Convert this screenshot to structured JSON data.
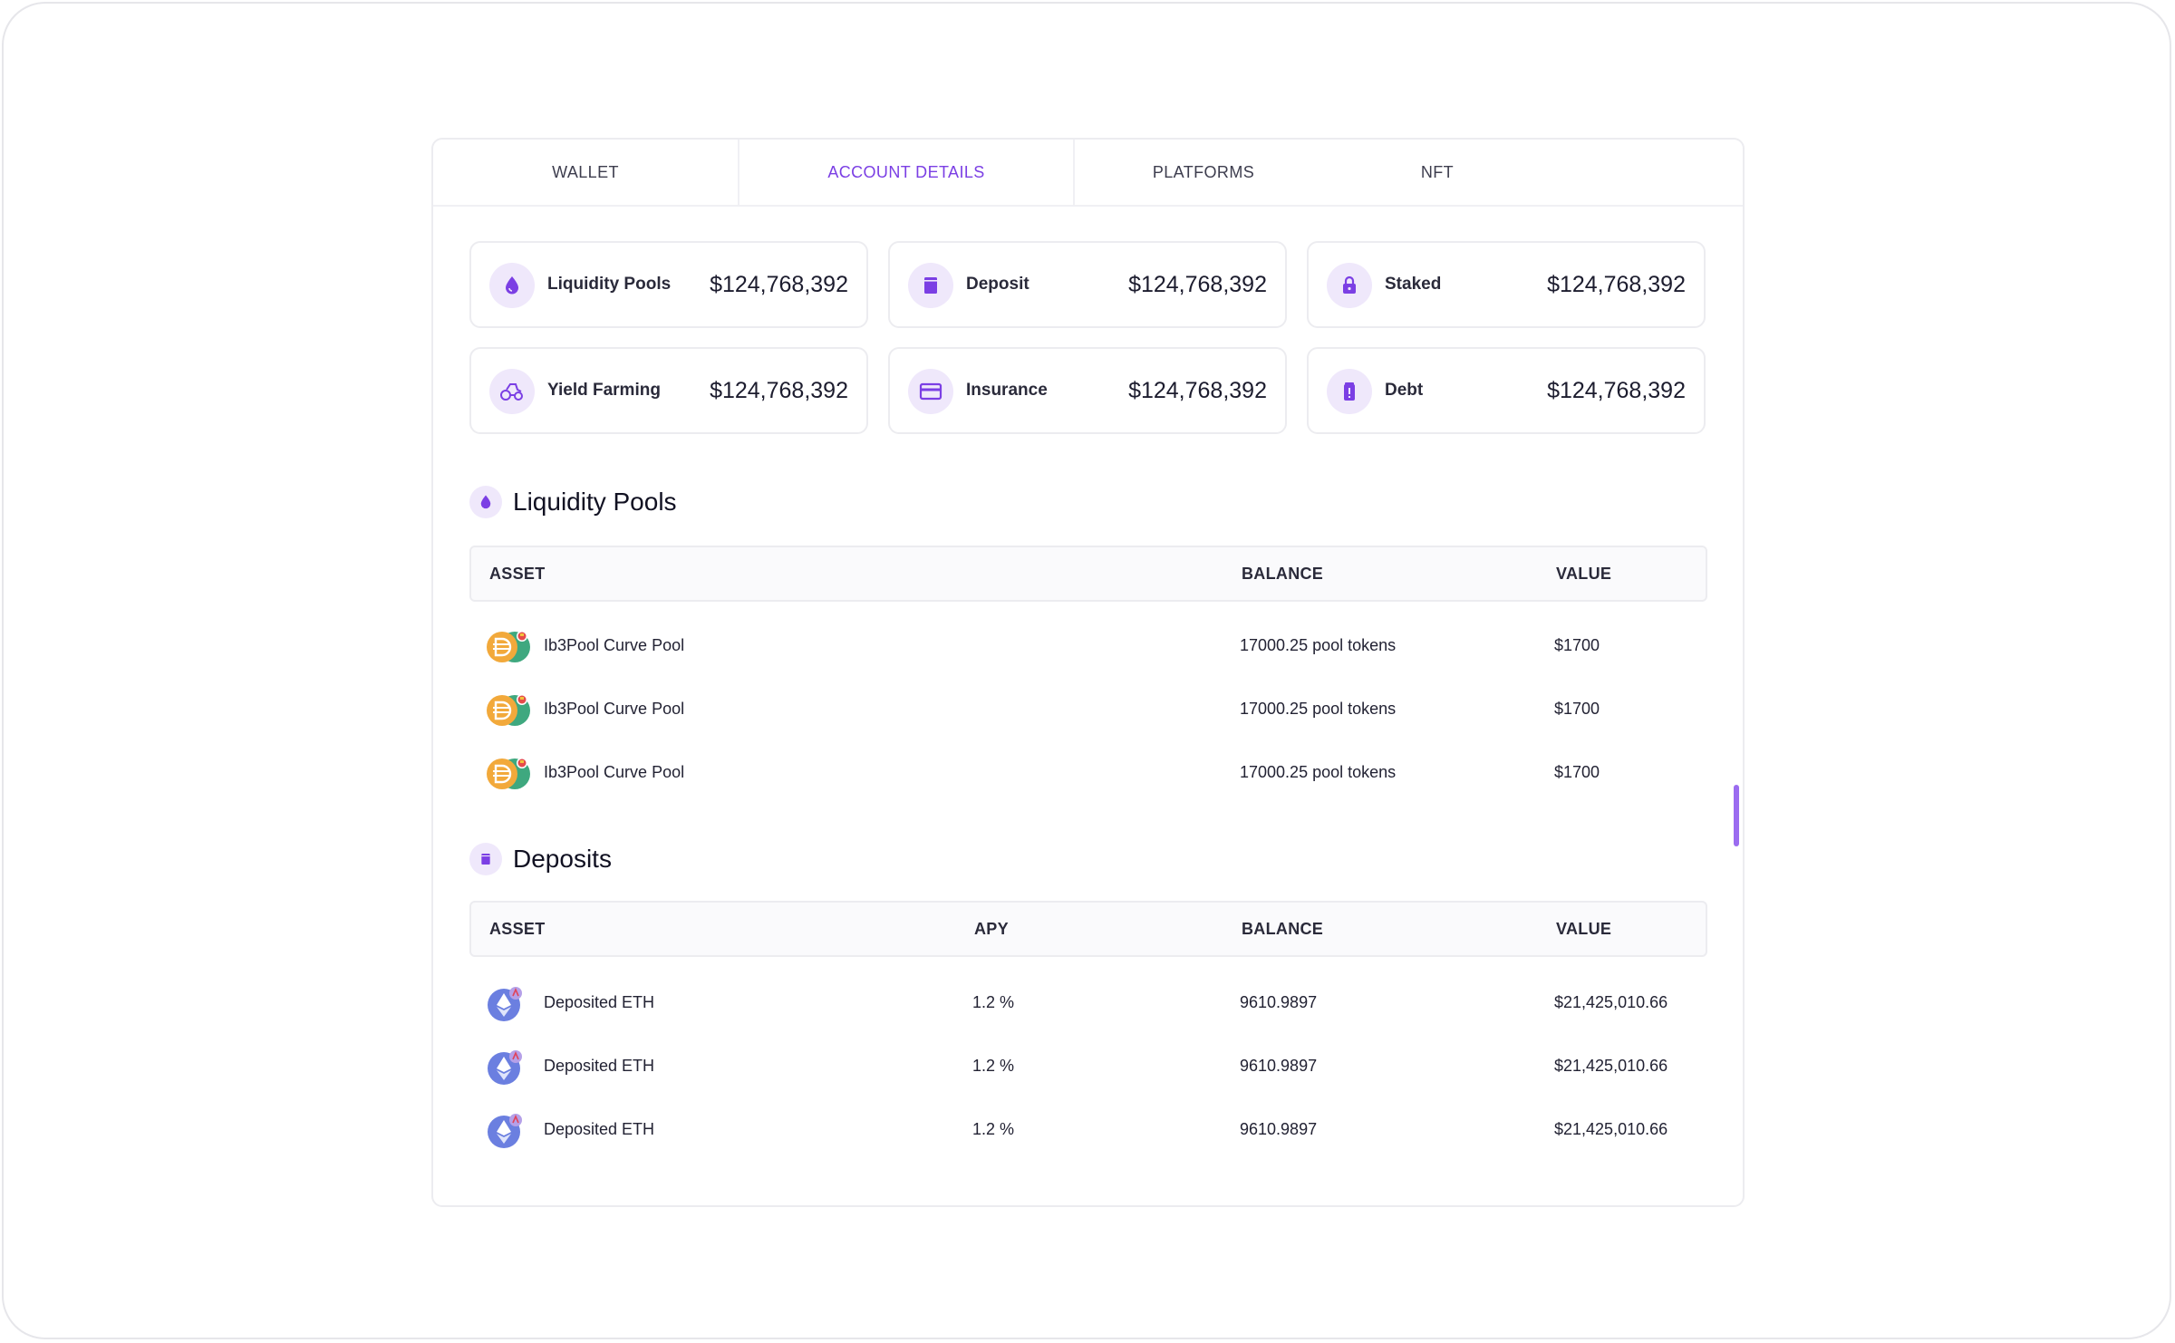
{
  "tabs": [
    {
      "label": "WALLET",
      "active": false
    },
    {
      "label": "ACCOUNT DETAILS",
      "active": true
    },
    {
      "label": "PLATFORMS",
      "active": false
    },
    {
      "label": "NFT",
      "active": false
    }
  ],
  "summary_cards": [
    {
      "label": "Liquidity Pools",
      "value": "$124,768,392",
      "icon": "droplet-icon"
    },
    {
      "label": "Deposit",
      "value": "$124,768,392",
      "icon": "deposit-box-icon"
    },
    {
      "label": "Staked",
      "value": "$124,768,392",
      "icon": "lock-icon"
    },
    {
      "label": "Yield Farming",
      "value": "$124,768,392",
      "icon": "tractor-icon"
    },
    {
      "label": "Insurance",
      "value": "$124,768,392",
      "icon": "card-icon"
    },
    {
      "label": "Debt",
      "value": "$124,768,392",
      "icon": "debt-alert-icon"
    }
  ],
  "liquidity_pools": {
    "title": "Liquidity Pools",
    "columns": {
      "asset": "ASSET",
      "balance": "BALANCE",
      "value": "VALUE"
    },
    "rows": [
      {
        "asset": "Ib3Pool Curve Pool",
        "balance": "17000.25 pool tokens",
        "value": "$1700"
      },
      {
        "asset": "Ib3Pool Curve Pool",
        "balance": "17000.25 pool tokens",
        "value": "$1700"
      },
      {
        "asset": "Ib3Pool Curve Pool",
        "balance": "17000.25 pool tokens",
        "value": "$1700"
      }
    ]
  },
  "deposits": {
    "title": "Deposits",
    "columns": {
      "asset": "ASSET",
      "apy": "APY",
      "balance": "BALANCE",
      "value": "VALUE"
    },
    "rows": [
      {
        "asset": "Deposited ETH",
        "apy": "1.2 %",
        "balance": "9610.9897",
        "value": "$21,425,010.66"
      },
      {
        "asset": "Deposited ETH",
        "apy": "1.2 %",
        "balance": "9610.9897",
        "value": "$21,425,010.66"
      },
      {
        "asset": "Deposited ETH",
        "apy": "1.2 %",
        "balance": "9610.9897",
        "value": "$21,425,010.66"
      }
    ]
  },
  "colors": {
    "accent": "#7b3fe4",
    "icon_bg": "#efe8fb",
    "dai": "#f2a93b",
    "curve": "#3fa87f",
    "eth": "#6b7fe0"
  }
}
